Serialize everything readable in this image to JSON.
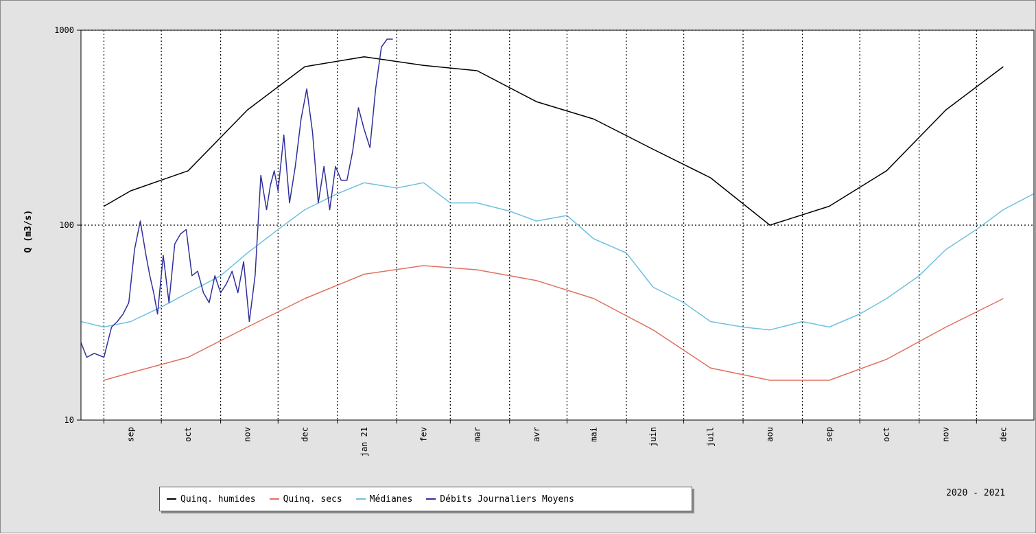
{
  "chart_data": {
    "type": "line",
    "title": "",
    "xlabel": "",
    "ylabel": "Q (m3/s)",
    "y_scale": "log",
    "ylim": [
      10,
      1000
    ],
    "y_ticks": [
      {
        "value": 10,
        "label": "10"
      },
      {
        "value": 100,
        "label": "100"
      },
      {
        "value": 1000,
        "label": "1000"
      }
    ],
    "x_range": [
      "2020-08-20",
      "2021-12-31"
    ],
    "x_month_boundaries": [
      "2020-09-01",
      "2020-10-01",
      "2020-11-01",
      "2020-12-01",
      "2021-01-01",
      "2021-02-01",
      "2021-03-01",
      "2021-04-01",
      "2021-05-01",
      "2021-06-01",
      "2021-07-01",
      "2021-08-01",
      "2021-09-01",
      "2021-10-01",
      "2021-11-01",
      "2021-12-01",
      "2022-01-01"
    ],
    "x_tick_labels": [
      {
        "label": "sep",
        "date": "2020-09-15"
      },
      {
        "label": "oct",
        "date": "2020-10-15"
      },
      {
        "label": "nov",
        "date": "2020-11-15"
      },
      {
        "label": "dec",
        "date": "2020-12-15"
      },
      {
        "label": "jan 21",
        "date": "2021-01-15"
      },
      {
        "label": "fev",
        "date": "2021-02-15"
      },
      {
        "label": "mar",
        "date": "2021-03-15"
      },
      {
        "label": "avr",
        "date": "2021-04-15"
      },
      {
        "label": "mai",
        "date": "2021-05-15"
      },
      {
        "label": "juin",
        "date": "2021-06-15"
      },
      {
        "label": "juil",
        "date": "2021-07-15"
      },
      {
        "label": "aou",
        "date": "2021-08-15"
      },
      {
        "label": "sep",
        "date": "2021-09-15"
      },
      {
        "label": "oct",
        "date": "2021-10-15"
      },
      {
        "label": "nov",
        "date": "2021-11-15"
      },
      {
        "label": "dec",
        "date": "2021-12-15"
      }
    ],
    "grid": true,
    "legend_position": "bottom",
    "series": [
      {
        "name": "Quinq. humides",
        "color": "#000000",
        "x": [
          "2020-09-01",
          "2020-09-15",
          "2020-10-15",
          "2020-11-15",
          "2020-12-15",
          "2021-01-15",
          "2021-02-15",
          "2021-03-15",
          "2021-04-15",
          "2021-05-15",
          "2021-06-15",
          "2021-07-15",
          "2021-08-15",
          "2021-09-15",
          "2021-10-15",
          "2021-11-15",
          "2021-12-15"
        ],
        "y": [
          125,
          150,
          190,
          390,
          650,
          730,
          660,
          620,
          430,
          350,
          245,
          175,
          100,
          125,
          190,
          390,
          650
        ]
      },
      {
        "name": "Quinq. secs",
        "color": "#e07060",
        "x": [
          "2020-09-01",
          "2020-09-15",
          "2020-10-15",
          "2020-11-15",
          "2020-12-15",
          "2021-01-15",
          "2021-02-15",
          "2021-03-15",
          "2021-04-15",
          "2021-05-15",
          "2021-06-15",
          "2021-07-15",
          "2021-08-15",
          "2021-09-15",
          "2021-10-15",
          "2021-11-15",
          "2021-12-15"
        ],
        "y": [
          16,
          17.5,
          21,
          30,
          42,
          56,
          62,
          59,
          52,
          42,
          29,
          18.5,
          16,
          16,
          20.5,
          30,
          42
        ]
      },
      {
        "name": "Médianes",
        "color": "#6ec0e0",
        "x": [
          "2020-08-20",
          "2020-09-01",
          "2020-09-15",
          "2020-10-01",
          "2020-10-15",
          "2020-11-01",
          "2020-11-15",
          "2020-12-01",
          "2020-12-15",
          "2021-01-01",
          "2021-01-15",
          "2021-02-01",
          "2021-02-15",
          "2021-03-01",
          "2021-03-15",
          "2021-04-01",
          "2021-04-15",
          "2021-05-01",
          "2021-05-15",
          "2021-06-01",
          "2021-06-15",
          "2021-07-01",
          "2021-07-15",
          "2021-08-01",
          "2021-08-15",
          "2021-09-01",
          "2021-09-15",
          "2021-10-01",
          "2021-10-15",
          "2021-11-01",
          "2021-11-15",
          "2021-12-01",
          "2021-12-15",
          "2021-12-31"
        ],
        "y": [
          32,
          30,
          32,
          38,
          45,
          55,
          72,
          95,
          120,
          145,
          165,
          155,
          165,
          130,
          130,
          118,
          105,
          112,
          85,
          72,
          48,
          40,
          32,
          30,
          29,
          32,
          30,
          35,
          42,
          55,
          75,
          95,
          120,
          145
        ]
      },
      {
        "name": "Débits Journaliers Moyens",
        "color": "#2f2f9c",
        "x": [
          "2020-08-20",
          "2020-08-23",
          "2020-08-27",
          "2020-09-01",
          "2020-09-05",
          "2020-09-08",
          "2020-09-11",
          "2020-09-14",
          "2020-09-17",
          "2020-09-20",
          "2020-09-23",
          "2020-09-25",
          "2020-09-27",
          "2020-09-29",
          "2020-10-02",
          "2020-10-05",
          "2020-10-08",
          "2020-10-11",
          "2020-10-14",
          "2020-10-17",
          "2020-10-20",
          "2020-10-23",
          "2020-10-26",
          "2020-10-29",
          "2020-11-01",
          "2020-11-04",
          "2020-11-07",
          "2020-11-10",
          "2020-11-13",
          "2020-11-16",
          "2020-11-19",
          "2020-11-22",
          "2020-11-25",
          "2020-11-27",
          "2020-11-29",
          "2020-12-01",
          "2020-12-04",
          "2020-12-07",
          "2020-12-10",
          "2020-12-13",
          "2020-12-16",
          "2020-12-19",
          "2020-12-22",
          "2020-12-25",
          "2020-12-28",
          "2020-12-31",
          "2021-01-03",
          "2021-01-06",
          "2021-01-09",
          "2021-01-12",
          "2021-01-15",
          "2021-01-18",
          "2021-01-21",
          "2021-01-24",
          "2021-01-27",
          "2021-01-30"
        ],
        "y": [
          25,
          21,
          22,
          21,
          30,
          32,
          35,
          40,
          75,
          105,
          70,
          55,
          45,
          35,
          70,
          40,
          80,
          90,
          95,
          55,
          58,
          45,
          40,
          55,
          45,
          50,
          58,
          45,
          65,
          32,
          55,
          180,
          120,
          160,
          190,
          150,
          290,
          130,
          200,
          350,
          500,
          300,
          130,
          200,
          120,
          200,
          170,
          170,
          240,
          400,
          310,
          250,
          500,
          820,
          900,
          900
        ]
      }
    ],
    "annotation": "2020 - 2021"
  }
}
